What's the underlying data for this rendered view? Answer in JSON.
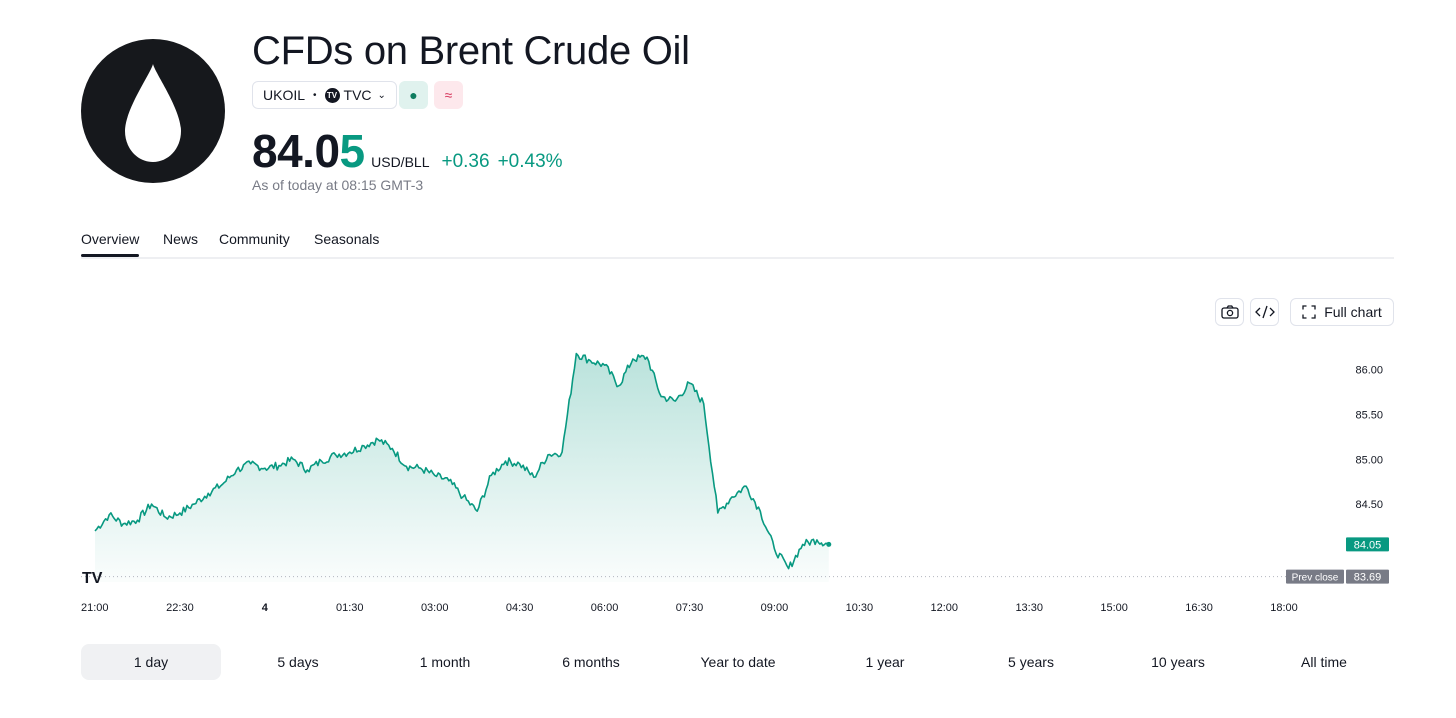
{
  "header": {
    "title": "CFDs on Brent Crude Oil",
    "logo_icon": "oil-drop-icon",
    "symbol": "UKOIL",
    "separator": "•",
    "exchange_logo": "TV",
    "exchange": "TVC",
    "market_status_icon": "●",
    "indicator_icon": "≈",
    "price_main": "84.0",
    "price_last_digit": "5",
    "currency": "USD/BLL",
    "change_abs": "+0.36",
    "change_pct": "+0.43%",
    "as_of": "As of today at 08:15 GMT-3",
    "accent_color": "#089981"
  },
  "tabs": [
    {
      "label": "Overview",
      "active": true
    },
    {
      "label": "News",
      "active": false
    },
    {
      "label": "Community",
      "active": false
    },
    {
      "label": "Seasonals",
      "active": false
    }
  ],
  "toolbar": {
    "full_chart_label": "Full chart",
    "snapshot_icon": "camera-icon",
    "embed_icon": "code-icon",
    "fullscreen_icon": "fullscreen-icon"
  },
  "range_buttons": [
    {
      "label": "1 day",
      "active": true
    },
    {
      "label": "5 days",
      "active": false
    },
    {
      "label": "1 month",
      "active": false
    },
    {
      "label": "6 months",
      "active": false
    },
    {
      "label": "Year to date",
      "active": false
    },
    {
      "label": "1 year",
      "active": false
    },
    {
      "label": "5 years",
      "active": false
    },
    {
      "label": "10 years",
      "active": false
    },
    {
      "label": "All time",
      "active": false
    }
  ],
  "chart_data": {
    "type": "area",
    "title": "",
    "xlabel": "",
    "ylabel": "",
    "x_ticks": [
      "21:00",
      "22:30",
      "4",
      "01:30",
      "03:00",
      "04:30",
      "06:00",
      "07:30",
      "09:00",
      "10:30",
      "12:00",
      "13:30",
      "15:00",
      "16:30",
      "18:00"
    ],
    "x_tick_hours": [
      0,
      1.5,
      3,
      4.5,
      6,
      7.5,
      9,
      10.5,
      12,
      13.5,
      15,
      16.5,
      18,
      19.5,
      21
    ],
    "y_ticks": [
      "86.00",
      "85.50",
      "85.00",
      "84.50"
    ],
    "y_tick_values": [
      86.0,
      85.5,
      85.0,
      84.5
    ],
    "ylim": [
      83.63,
      86.22
    ],
    "xlim_hours": [
      0,
      21
    ],
    "grid": false,
    "series": [
      {
        "color": "#089981",
        "x_hours": [
          0,
          0.25,
          0.5,
          0.75,
          1.0,
          1.25,
          1.5,
          1.75,
          2.0,
          2.25,
          2.5,
          2.75,
          3.0,
          3.25,
          3.5,
          3.75,
          4.0,
          4.25,
          4.5,
          4.75,
          5.0,
          5.25,
          5.5,
          5.75,
          6.0,
          6.25,
          6.5,
          6.75,
          7.0,
          7.25,
          7.5,
          7.75,
          8.0,
          8.25,
          8.5,
          8.75,
          9.0,
          9.25,
          9.5,
          9.75,
          10.0,
          10.25,
          10.5,
          10.75,
          11.0,
          11.25,
          11.5,
          11.75,
          12.0,
          12.25,
          12.5,
          12.75,
          12.96
        ],
        "values": [
          84.2,
          84.38,
          84.28,
          84.32,
          84.5,
          84.35,
          84.4,
          84.5,
          84.62,
          84.72,
          84.88,
          84.95,
          84.9,
          84.93,
          85.0,
          84.88,
          84.98,
          85.05,
          85.08,
          85.15,
          85.22,
          85.12,
          84.92,
          84.9,
          84.82,
          84.76,
          84.58,
          84.42,
          84.82,
          84.98,
          84.95,
          84.8,
          85.05,
          85.08,
          86.18,
          86.1,
          86.05,
          85.82,
          86.12,
          86.14,
          85.7,
          85.65,
          85.85,
          85.62,
          84.4,
          84.58,
          84.7,
          84.42,
          84.0,
          83.78,
          84.05,
          84.1,
          84.05
        ]
      }
    ],
    "last_price_label": "84.05",
    "prev_close_label": "Prev close",
    "prev_close_value": "83.69",
    "prev_close": 83.69,
    "watermark": "TV"
  }
}
